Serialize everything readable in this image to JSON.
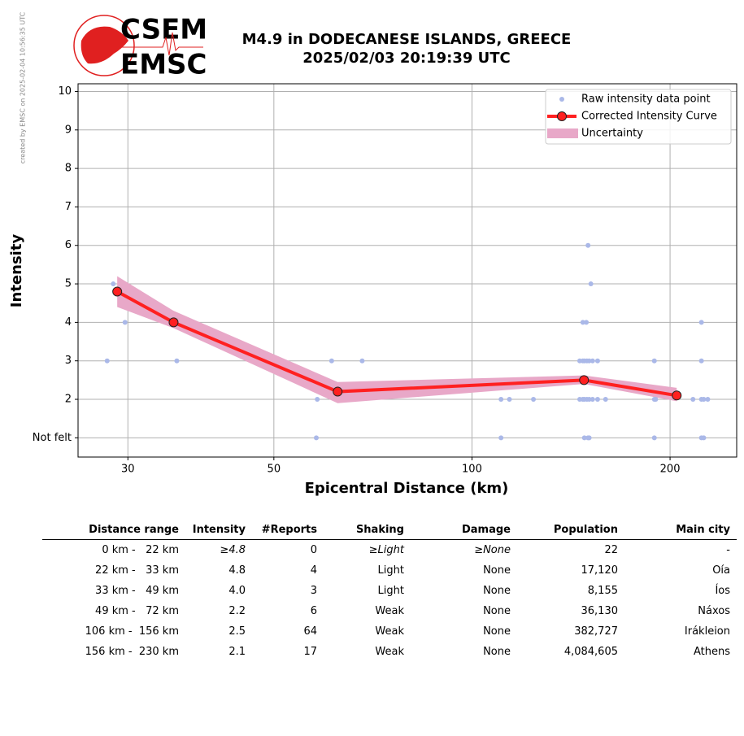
{
  "credit": "created by EMSC on 2025-02-04 10:56:35 UTC",
  "logo": {
    "top": "CSEM",
    "bottom": "EMSC"
  },
  "chart_data": {
    "type": "line",
    "title": "M4.9 in DODECANESE ISLANDS, GREECE",
    "subtitle": "2025/02/03 20:19:39 UTC",
    "x_label": "Epicentral Distance (km)",
    "y_label": "Intensity",
    "x_scale": "log",
    "xlim": [
      25.2,
      252.5
    ],
    "xticks": [
      30,
      50,
      100,
      200
    ],
    "ylim": [
      0.5,
      10.2
    ],
    "yticks": [
      {
        "value": 1,
        "label": "Not felt"
      },
      2,
      3,
      4,
      5,
      6,
      7,
      8,
      9,
      10
    ],
    "grid": true,
    "legend_position": "upper right",
    "series": [
      {
        "name": "Raw intensity data point",
        "type": "scatter",
        "color": "#aab8e8",
        "x": [
          27.9,
          28.5,
          29.7,
          35.6,
          58.0,
          58.2,
          61.2,
          68.1,
          110.7,
          110.7,
          114,
          124,
          145.8,
          145.8,
          147.4,
          148.2,
          149.5,
          150.7,
          152.5,
          155.2,
          159.6,
          147.4,
          148.2,
          149.5,
          150.7,
          152.5,
          155.2,
          147.4,
          149.2,
          150.1,
          151.6,
          148.2,
          150.1,
          150.7,
          189.3,
          189.3,
          190.2,
          189.3,
          216.7,
          223.2,
          223.2,
          223.2,
          225.0,
          228.2,
          223.2,
          225.0
        ],
        "values": [
          3,
          5,
          4,
          3,
          1,
          2,
          3,
          3,
          2,
          1,
          2,
          2,
          3,
          2,
          2,
          2,
          2,
          2,
          2,
          2,
          2,
          3,
          3,
          3,
          3,
          3,
          3,
          4,
          4,
          6,
          5,
          1,
          1,
          1,
          3,
          2,
          2,
          1,
          2,
          4,
          3,
          2,
          2,
          2,
          1,
          1
        ]
      },
      {
        "name": "Corrected Intensity Curve",
        "type": "line",
        "color": "#ff2020",
        "x": [
          28.9,
          35.2,
          62.5,
          148,
          204.7
        ],
        "values": [
          4.8,
          4.0,
          2.2,
          2.5,
          2.1
        ]
      },
      {
        "name": "Uncertainty",
        "type": "band",
        "color": "#e8a8c8",
        "x": [
          28.9,
          35.2,
          62.5,
          148,
          204.7
        ],
        "upper": [
          5.2,
          4.3,
          2.45,
          2.62,
          2.3
        ],
        "lower": [
          4.4,
          3.85,
          1.9,
          2.4,
          1.95
        ]
      }
    ]
  },
  "table": {
    "columns": [
      "Distance range",
      "Intensity",
      "#Reports",
      "Shaking",
      "Damage",
      "Population",
      "Main city"
    ],
    "rows": [
      [
        "0 km -   22 km",
        "≥4.8",
        "0",
        "≥Light",
        "≥None",
        "22",
        "-"
      ],
      [
        "22 km -   33 km",
        "4.8",
        "4",
        "Light",
        "None",
        "17,120",
        "Oía"
      ],
      [
        "33 km -   49 km",
        "4.0",
        "3",
        "Light",
        "None",
        "8,155",
        "Íos"
      ],
      [
        "49 km -   72 km",
        "2.2",
        "6",
        "Weak",
        "None",
        "36,130",
        "Náxos"
      ],
      [
        "106 km -  156 km",
        "2.5",
        "64",
        "Weak",
        "None",
        "382,727",
        "Irákleion"
      ],
      [
        "156 km -  230 km",
        "2.1",
        "17",
        "Weak",
        "None",
        "4,084,605",
        "Athens"
      ]
    ]
  }
}
